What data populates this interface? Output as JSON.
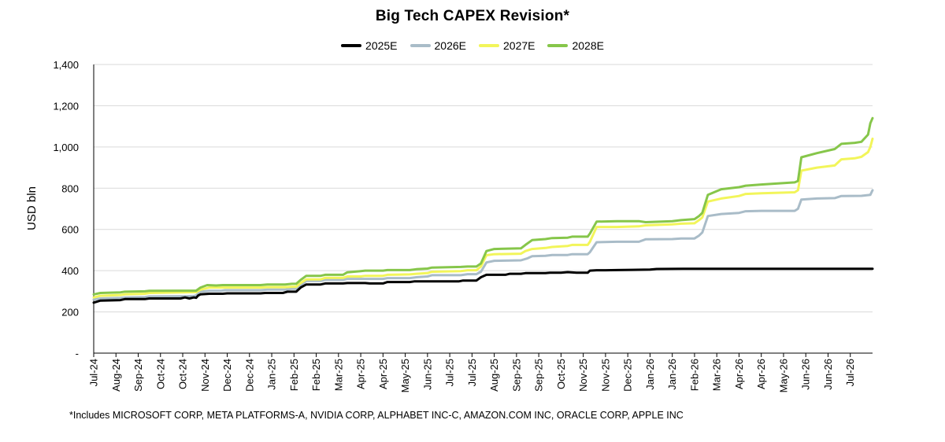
{
  "chart_data": {
    "type": "line",
    "title": "Big Tech CAPEX Revision*",
    "xlabel": "",
    "ylabel": "USD bln",
    "ylim": [
      0,
      1400
    ],
    "yticks": [
      0,
      200,
      400,
      600,
      800,
      1000,
      1200,
      1400
    ],
    "ytick_labels": [
      "-",
      "200",
      "400",
      "600",
      "800",
      "1,000",
      "1,200",
      "1,400"
    ],
    "grid": true,
    "legend_position": "top-center",
    "categories": [
      "Jul-24",
      "Aug-24",
      "Sep-24",
      "Oct-24",
      "Oct-24",
      "Nov-24",
      "Dec-24",
      "Dec-24",
      "Jan-25",
      "Feb-25",
      "Feb-25",
      "Mar-25",
      "Apr-25",
      "Apr-25",
      "May-25",
      "Jun-25",
      "Jul-25",
      "Jul-25",
      "Aug-25",
      "Sep-25",
      "Sep-25",
      "Oct-25",
      "Nov-25",
      "Nov-25",
      "Dec-25",
      "Jan-26",
      "Jan-26",
      "Feb-26",
      "Mar-26",
      "Apr-26",
      "Apr-26",
      "May-26",
      "Jun-26",
      "Jun-26",
      "Jul-26"
    ],
    "x_range": [
      0,
      35
    ],
    "series": [
      {
        "name": "2025E",
        "color": "#000000",
        "points": [
          [
            0,
            245
          ],
          [
            0.3,
            255
          ],
          [
            1.2,
            257
          ],
          [
            1.4,
            262
          ],
          [
            2.3,
            262
          ],
          [
            2.5,
            265
          ],
          [
            3.9,
            265
          ],
          [
            4.1,
            270
          ],
          [
            4.3,
            265
          ],
          [
            4.5,
            270
          ],
          [
            4.6,
            268
          ],
          [
            4.7,
            280
          ],
          [
            4.8,
            285
          ],
          [
            5.2,
            288
          ],
          [
            5.8,
            288
          ],
          [
            6,
            290
          ],
          [
            7.5,
            290
          ],
          [
            7.7,
            292
          ],
          [
            8.5,
            292
          ],
          [
            8.7,
            298
          ],
          [
            9.1,
            298
          ],
          [
            9.3,
            318
          ],
          [
            9.55,
            333
          ],
          [
            10.2,
            333
          ],
          [
            10.4,
            338
          ],
          [
            11.2,
            338
          ],
          [
            11.4,
            340
          ],
          [
            12.2,
            340
          ],
          [
            12.4,
            338
          ],
          [
            13.0,
            338
          ],
          [
            13.2,
            345
          ],
          [
            14.2,
            345
          ],
          [
            14.4,
            348
          ],
          [
            16.4,
            348
          ],
          [
            16.6,
            352
          ],
          [
            17.2,
            352
          ],
          [
            17.4,
            368
          ],
          [
            17.65,
            380
          ],
          [
            18.5,
            380
          ],
          [
            18.7,
            385
          ],
          [
            19.2,
            385
          ],
          [
            19.4,
            388
          ],
          [
            20.3,
            388
          ],
          [
            20.5,
            390
          ],
          [
            21.0,
            390
          ],
          [
            21.3,
            393
          ],
          [
            21.7,
            390
          ],
          [
            22.2,
            390
          ],
          [
            22.3,
            400
          ],
          [
            22.6,
            402
          ],
          [
            23.0,
            402
          ],
          [
            23.5,
            403
          ],
          [
            24.2,
            404
          ],
          [
            25.0,
            405
          ],
          [
            25.3,
            408
          ],
          [
            26.5,
            409
          ],
          [
            30.0,
            409
          ],
          [
            35,
            409
          ]
        ]
      },
      {
        "name": "2026E",
        "color": "#A9BCC8",
        "points": [
          [
            0,
            260
          ],
          [
            0.3,
            265
          ],
          [
            1.2,
            268
          ],
          [
            1.4,
            270
          ],
          [
            2.3,
            272
          ],
          [
            2.5,
            275
          ],
          [
            4.0,
            276
          ],
          [
            4.5,
            277
          ],
          [
            4.6,
            280
          ],
          [
            4.8,
            298
          ],
          [
            5.2,
            302
          ],
          [
            5.7,
            302
          ],
          [
            5.9,
            305
          ],
          [
            7.5,
            305
          ],
          [
            7.8,
            308
          ],
          [
            8.6,
            308
          ],
          [
            8.9,
            312
          ],
          [
            9.1,
            312
          ],
          [
            9.3,
            330
          ],
          [
            9.55,
            350
          ],
          [
            10.2,
            350
          ],
          [
            10.4,
            355
          ],
          [
            11.2,
            355
          ],
          [
            11.4,
            360
          ],
          [
            12.0,
            360
          ],
          [
            12.2,
            360
          ],
          [
            13.0,
            360
          ],
          [
            13.2,
            364
          ],
          [
            14.2,
            364
          ],
          [
            14.5,
            368
          ],
          [
            15.0,
            372
          ],
          [
            15.2,
            378
          ],
          [
            16.5,
            378
          ],
          [
            16.8,
            383
          ],
          [
            17.2,
            383
          ],
          [
            17.4,
            395
          ],
          [
            17.65,
            440
          ],
          [
            18.0,
            448
          ],
          [
            19.2,
            450
          ],
          [
            19.5,
            460
          ],
          [
            19.7,
            470
          ],
          [
            20.3,
            472
          ],
          [
            20.6,
            476
          ],
          [
            21.3,
            476
          ],
          [
            21.5,
            480
          ],
          [
            22.2,
            480
          ],
          [
            22.3,
            490
          ],
          [
            22.6,
            538
          ],
          [
            23.5,
            540
          ],
          [
            24.5,
            540
          ],
          [
            24.8,
            552
          ],
          [
            26.0,
            553
          ],
          [
            26.4,
            556
          ],
          [
            27.0,
            556
          ],
          [
            27.2,
            570
          ],
          [
            27.35,
            585
          ],
          [
            27.6,
            665
          ],
          [
            28.2,
            675
          ],
          [
            29.0,
            680
          ],
          [
            29.3,
            688
          ],
          [
            30.0,
            690
          ],
          [
            31.5,
            690
          ],
          [
            31.65,
            700
          ],
          [
            31.8,
            745
          ],
          [
            32.5,
            750
          ],
          [
            33.3,
            752
          ],
          [
            33.6,
            762
          ],
          [
            34.5,
            763
          ],
          [
            34.9,
            768
          ],
          [
            35,
            790
          ]
        ]
      },
      {
        "name": "2027E",
        "color": "#F2F55A",
        "points": [
          [
            0,
            270
          ],
          [
            0.3,
            278
          ],
          [
            1.2,
            282
          ],
          [
            1.4,
            285
          ],
          [
            2.3,
            288
          ],
          [
            2.5,
            292
          ],
          [
            4.0,
            295
          ],
          [
            4.6,
            296
          ],
          [
            4.8,
            308
          ],
          [
            5.2,
            318
          ],
          [
            6.0,
            318
          ],
          [
            7.5,
            318
          ],
          [
            7.8,
            320
          ],
          [
            8.6,
            320
          ],
          [
            8.9,
            322
          ],
          [
            9.1,
            322
          ],
          [
            9.3,
            340
          ],
          [
            9.55,
            358
          ],
          [
            10.2,
            358
          ],
          [
            10.4,
            365
          ],
          [
            11.2,
            365
          ],
          [
            11.4,
            372
          ],
          [
            12.0,
            372
          ],
          [
            12.2,
            375
          ],
          [
            13.0,
            375
          ],
          [
            13.2,
            380
          ],
          [
            14.2,
            382
          ],
          [
            14.5,
            385
          ],
          [
            15.0,
            388
          ],
          [
            15.2,
            395
          ],
          [
            16.5,
            398
          ],
          [
            16.8,
            402
          ],
          [
            17.2,
            402
          ],
          [
            17.4,
            420
          ],
          [
            17.65,
            475
          ],
          [
            18.0,
            480
          ],
          [
            19.2,
            482
          ],
          [
            19.4,
            495
          ],
          [
            19.7,
            505
          ],
          [
            20.3,
            510
          ],
          [
            20.6,
            515
          ],
          [
            21.3,
            520
          ],
          [
            21.5,
            525
          ],
          [
            22.2,
            525
          ],
          [
            22.3,
            540
          ],
          [
            22.6,
            612
          ],
          [
            23.5,
            612
          ],
          [
            24.5,
            615
          ],
          [
            24.8,
            620
          ],
          [
            26.0,
            625
          ],
          [
            26.4,
            628
          ],
          [
            27.0,
            630
          ],
          [
            27.2,
            645
          ],
          [
            27.35,
            658
          ],
          [
            27.6,
            735
          ],
          [
            28.2,
            750
          ],
          [
            29.0,
            762
          ],
          [
            29.3,
            772
          ],
          [
            30.0,
            775
          ],
          [
            31.5,
            780
          ],
          [
            31.65,
            790
          ],
          [
            31.8,
            885
          ],
          [
            32.5,
            900
          ],
          [
            33.3,
            910
          ],
          [
            33.6,
            940
          ],
          [
            34.2,
            945
          ],
          [
            34.5,
            952
          ],
          [
            34.8,
            975
          ],
          [
            34.9,
            1000
          ],
          [
            35,
            1040
          ]
        ]
      },
      {
        "name": "2028E",
        "color": "#86C64A",
        "points": [
          [
            0,
            285
          ],
          [
            0.3,
            292
          ],
          [
            1.2,
            295
          ],
          [
            1.4,
            298
          ],
          [
            2.3,
            300
          ],
          [
            2.5,
            302
          ],
          [
            4.0,
            303
          ],
          [
            4.6,
            303
          ],
          [
            4.8,
            318
          ],
          [
            5.1,
            330
          ],
          [
            5.5,
            328
          ],
          [
            5.8,
            330
          ],
          [
            7.5,
            330
          ],
          [
            7.8,
            333
          ],
          [
            8.6,
            333
          ],
          [
            8.9,
            336
          ],
          [
            9.1,
            336
          ],
          [
            9.3,
            355
          ],
          [
            9.55,
            375
          ],
          [
            10.2,
            375
          ],
          [
            10.4,
            380
          ],
          [
            11.2,
            380
          ],
          [
            11.4,
            392
          ],
          [
            12.0,
            398
          ],
          [
            12.2,
            400
          ],
          [
            13.0,
            400
          ],
          [
            13.2,
            403
          ],
          [
            14.2,
            403
          ],
          [
            14.5,
            407
          ],
          [
            15.0,
            410
          ],
          [
            15.2,
            415
          ],
          [
            16.5,
            418
          ],
          [
            16.8,
            420
          ],
          [
            17.2,
            420
          ],
          [
            17.4,
            435
          ],
          [
            17.65,
            495
          ],
          [
            18.0,
            505
          ],
          [
            19.2,
            508
          ],
          [
            19.4,
            525
          ],
          [
            19.7,
            548
          ],
          [
            20.3,
            553
          ],
          [
            20.6,
            558
          ],
          [
            21.3,
            560
          ],
          [
            21.5,
            565
          ],
          [
            22.2,
            565
          ],
          [
            22.3,
            580
          ],
          [
            22.6,
            638
          ],
          [
            23.5,
            640
          ],
          [
            24.5,
            640
          ],
          [
            24.8,
            635
          ],
          [
            26.0,
            640
          ],
          [
            26.4,
            645
          ],
          [
            27.0,
            650
          ],
          [
            27.2,
            665
          ],
          [
            27.35,
            680
          ],
          [
            27.6,
            768
          ],
          [
            28.2,
            795
          ],
          [
            29.0,
            805
          ],
          [
            29.3,
            812
          ],
          [
            30.0,
            818
          ],
          [
            31.5,
            828
          ],
          [
            31.65,
            835
          ],
          [
            31.8,
            950
          ],
          [
            32.5,
            970
          ],
          [
            33.3,
            990
          ],
          [
            33.6,
            1015
          ],
          [
            34.2,
            1020
          ],
          [
            34.5,
            1025
          ],
          [
            34.8,
            1060
          ],
          [
            34.9,
            1115
          ],
          [
            35,
            1140
          ]
        ]
      }
    ],
    "footnote": "*Includes MICROSOFT CORP, META PLATFORMS-A, NVIDIA CORP, ALPHABET INC-C, AMAZON.COM INC, ORACLE CORP, APPLE INC"
  }
}
